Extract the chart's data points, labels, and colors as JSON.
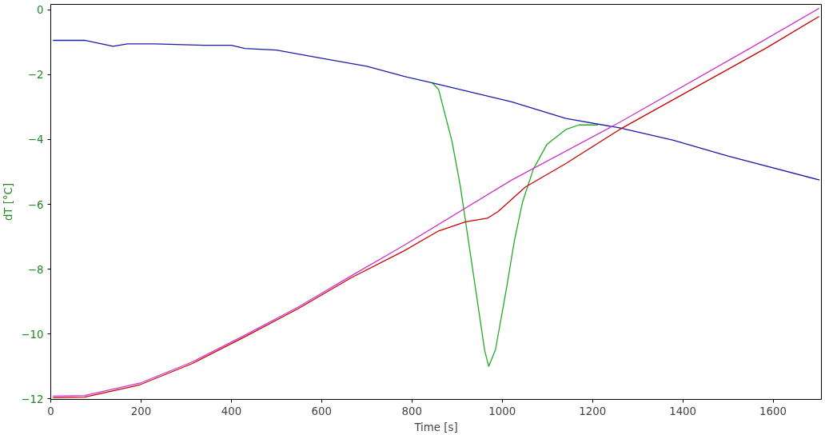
{
  "chart_data": {
    "type": "line",
    "xlabel": "Time [s]",
    "ylabel": "dT [°C]",
    "xlim": [
      0,
      1707
    ],
    "ylim": [
      -12.02,
      0.17
    ],
    "xticks": [
      0,
      200,
      400,
      600,
      800,
      1000,
      1200,
      1400,
      1600
    ],
    "yticks": [
      -12,
      -10,
      -8,
      -6,
      -4,
      -2,
      0
    ],
    "grid": false,
    "series": [
      {
        "color": "#22aa22",
        "x": [
          845,
          859,
          889,
          907,
          925,
          943,
          961,
          970,
          985,
          1009,
          1027,
          1045,
          1069,
          1099,
          1141,
          1170,
          1212
        ],
        "values": [
          -2.25,
          -2.45,
          -4.07,
          -5.42,
          -7.11,
          -8.8,
          -10.5,
          -11.0,
          -10.49,
          -8.63,
          -7.12,
          -5.93,
          -4.91,
          -4.15,
          -3.69,
          -3.55,
          -3.55
        ]
      },
      {
        "color": "#1a1aaa",
        "x": [
          5,
          75,
          138,
          170,
          230,
          340,
          400,
          430,
          500,
          600,
          700,
          782,
          845,
          1021,
          1141,
          1260,
          1379,
          1500,
          1703
        ],
        "values": [
          -0.94,
          -0.94,
          -1.12,
          -1.05,
          -1.05,
          -1.09,
          -1.09,
          -1.19,
          -1.24,
          -1.49,
          -1.74,
          -2.05,
          -2.25,
          -2.84,
          -3.35,
          -3.64,
          -4.02,
          -4.51,
          -5.25
        ]
      },
      {
        "color": "#cc33cc",
        "x": [
          5,
          75,
          197,
          314,
          431,
          548,
          665,
          782,
          1021,
          1260,
          1548,
          1702
        ],
        "values": [
          -11.92,
          -11.9,
          -11.52,
          -10.86,
          -10.03,
          -9.17,
          -8.21,
          -7.27,
          -5.25,
          -3.47,
          -1.19,
          0.05
        ]
      },
      {
        "color": "#cc0000",
        "x": [
          5,
          75,
          197,
          314,
          431,
          548,
          665,
          782,
          859,
          919,
          967,
          991,
          1051,
          1141,
          1260,
          1583,
          1702
        ],
        "values": [
          -11.97,
          -11.95,
          -11.57,
          -10.91,
          -10.08,
          -9.22,
          -8.27,
          -7.44,
          -6.82,
          -6.54,
          -6.43,
          -6.22,
          -5.47,
          -4.74,
          -3.69,
          -1.19,
          -0.2
        ]
      }
    ]
  }
}
